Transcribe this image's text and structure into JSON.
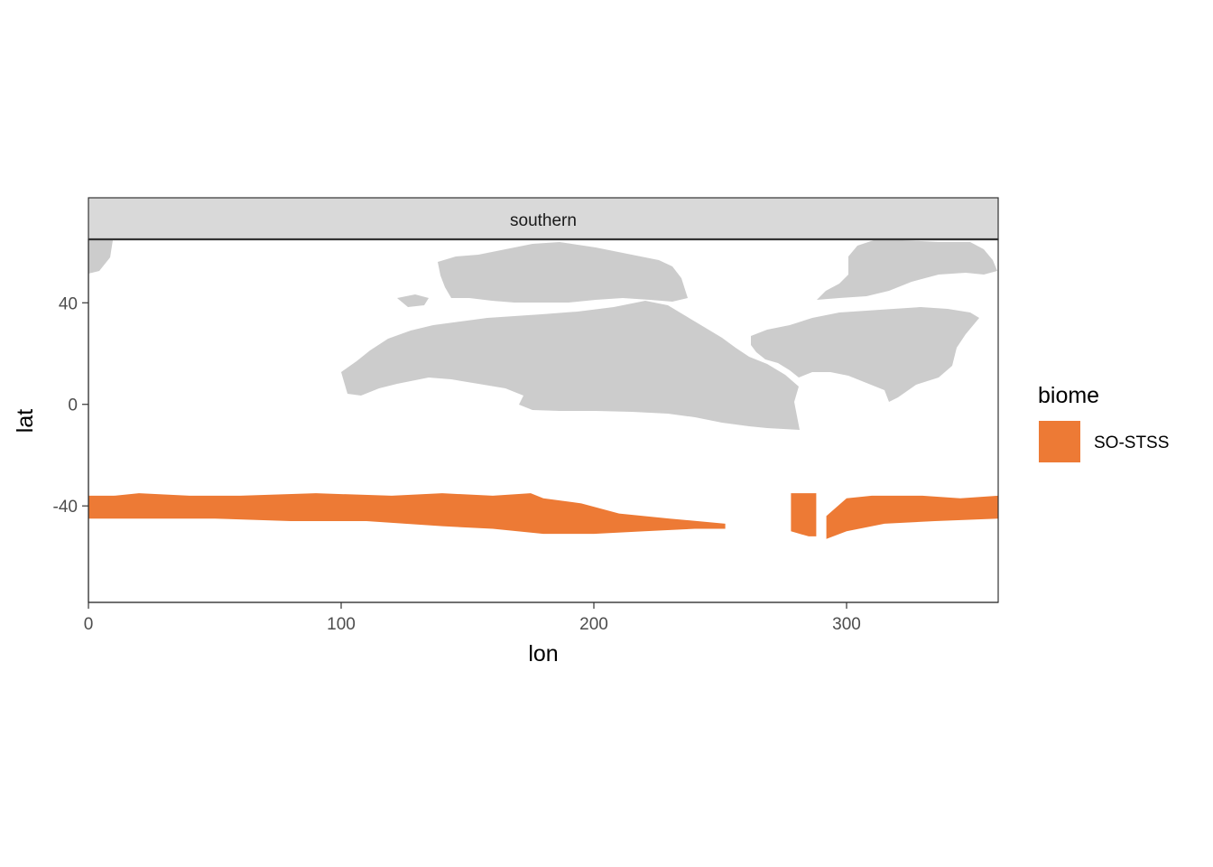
{
  "chart_data": {
    "type": "heatmap",
    "title": "",
    "facet": {
      "label": "southern"
    },
    "xlabel": "lon",
    "ylabel": "lat",
    "xlim": [
      0,
      360
    ],
    "ylim": [
      -78,
      65
    ],
    "x_ticks": [
      0,
      100,
      200,
      300
    ],
    "y_ticks": [
      -40,
      0,
      40
    ],
    "grid": false,
    "legend": {
      "title": "biome",
      "position": "right",
      "entries": [
        {
          "label": "SO-STSS",
          "color": "#ED7A35"
        }
      ]
    },
    "colors": {
      "land": "#CCCCCC",
      "strip_fill": "#D9D9D9",
      "panel_border": "#333333"
    },
    "series": [
      {
        "name": "SO-STSS",
        "color": "#ED7A35",
        "segments": [
          {
            "lon": [
              0,
              252
            ],
            "lat_north": [
              [
                0,
                -36
              ],
              [
                10,
                -36
              ],
              [
                20,
                -35
              ],
              [
                40,
                -36
              ],
              [
                60,
                -36
              ],
              [
                90,
                -35
              ],
              [
                120,
                -36
              ],
              [
                140,
                -35
              ],
              [
                160,
                -36
              ],
              [
                175,
                -35
              ],
              [
                180,
                -37
              ],
              [
                195,
                -39
              ],
              [
                210,
                -43
              ],
              [
                230,
                -45
              ],
              [
                252,
                -47
              ]
            ],
            "lat_south": [
              [
                0,
                -45
              ],
              [
                20,
                -45
              ],
              [
                50,
                -45
              ],
              [
                80,
                -46
              ],
              [
                110,
                -46
              ],
              [
                140,
                -48
              ],
              [
                160,
                -49
              ],
              [
                180,
                -51
              ],
              [
                200,
                -51
              ],
              [
                220,
                -50
              ],
              [
                240,
                -49
              ],
              [
                252,
                -49
              ]
            ]
          },
          {
            "lon": [
              278,
              288
            ],
            "lat_north": [
              [
                278,
                -35
              ],
              [
                288,
                -35
              ]
            ],
            "lat_south": [
              [
                278,
                -50
              ],
              [
                285,
                -52
              ],
              [
                288,
                -52
              ]
            ]
          },
          {
            "lon": [
              292,
              360
            ],
            "lat_north": [
              [
                292,
                -44
              ],
              [
                300,
                -37
              ],
              [
                310,
                -36
              ],
              [
                330,
                -36
              ],
              [
                345,
                -37
              ],
              [
                360,
                -36
              ]
            ],
            "lat_south": [
              [
                292,
                -53
              ],
              [
                300,
                -50
              ],
              [
                315,
                -47
              ],
              [
                335,
                -46
              ],
              [
                360,
                -45
              ]
            ]
          }
        ]
      }
    ]
  }
}
